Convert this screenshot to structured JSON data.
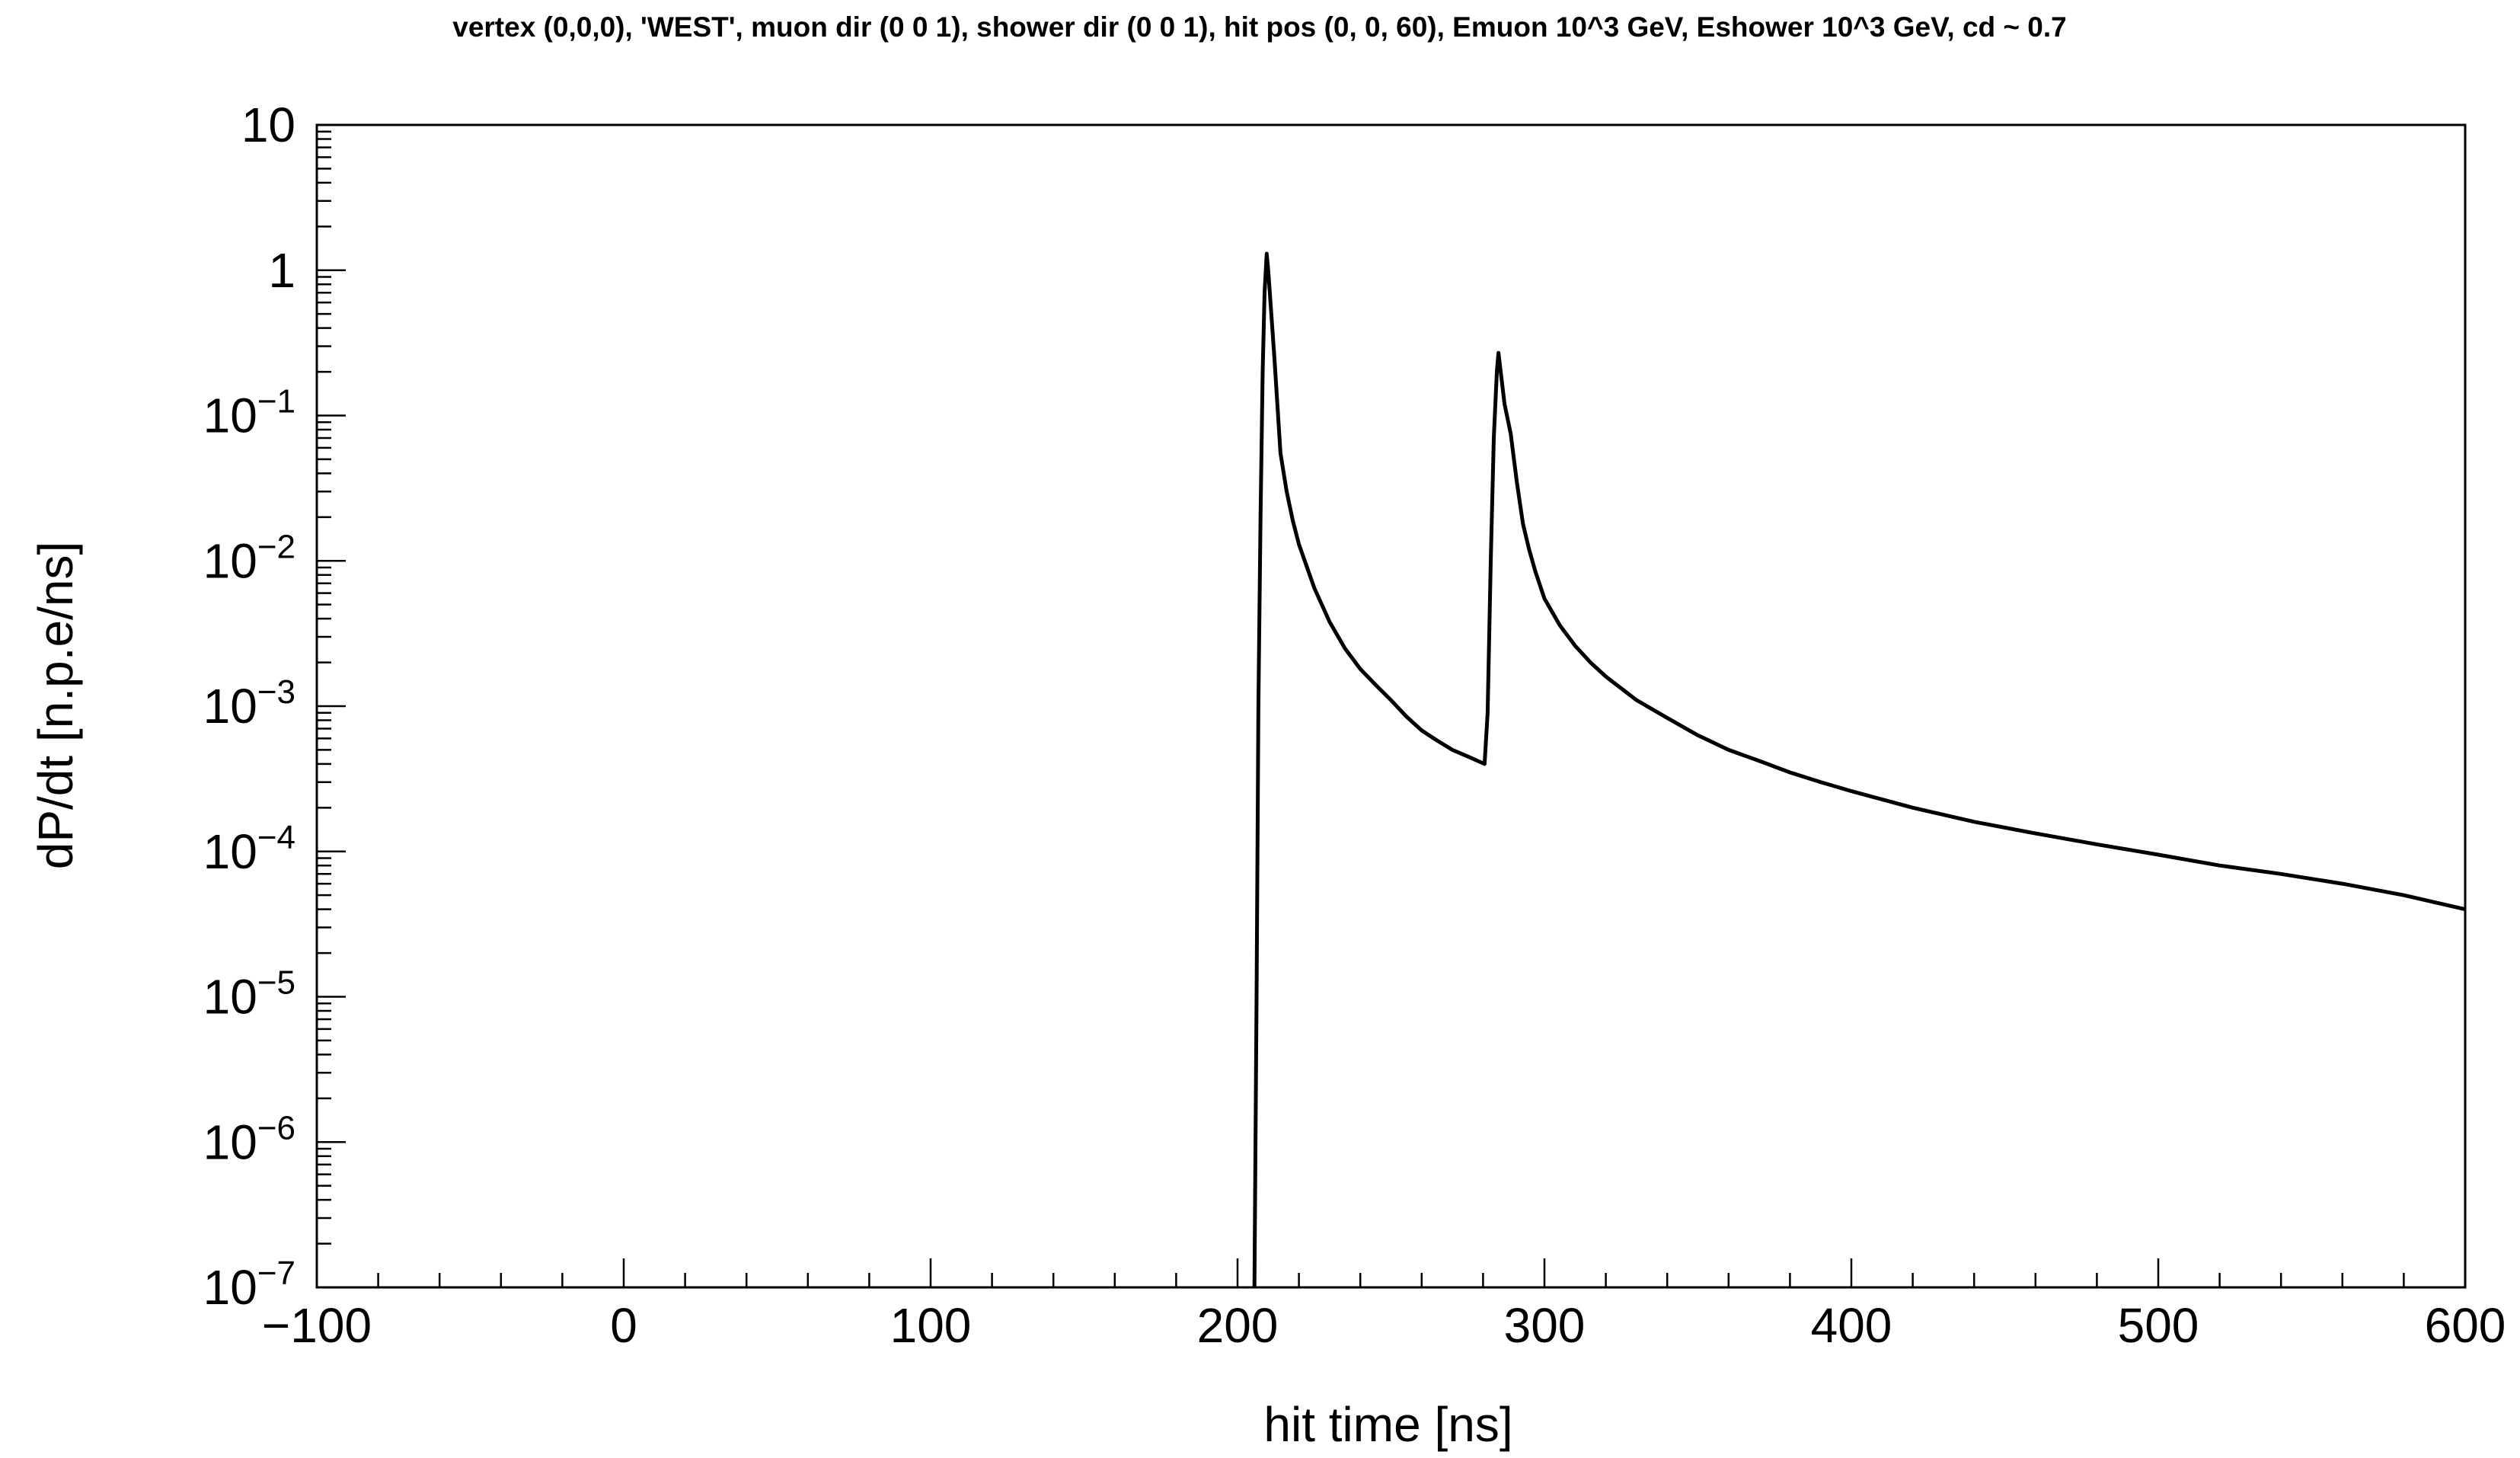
{
  "chart_data": {
    "type": "line",
    "title": "vertex (0,0,0), 'WEST', muon dir (0 0 1), shower dir (0 0 1), hit pos (0, 0, 60), Emuon 10^3 GeV, Eshower 10^3 GeV, cd ~ 0.7",
    "xlabel": "hit time [ns]",
    "ylabel": "dP/dt [n.p.e/ns]",
    "xlim": [
      -100,
      600
    ],
    "ylim": [
      1e-07,
      10
    ],
    "yscale": "log",
    "grid": false,
    "legend": "none",
    "line_color": "#000000",
    "x_ticks": [
      {
        "value": -100,
        "label": "−100"
      },
      {
        "value": 0,
        "label": "0"
      },
      {
        "value": 100,
        "label": "100"
      },
      {
        "value": 200,
        "label": "200"
      },
      {
        "value": 300,
        "label": "300"
      },
      {
        "value": 400,
        "label": "400"
      },
      {
        "value": 500,
        "label": "500"
      },
      {
        "value": 600,
        "label": "600"
      }
    ],
    "y_ticks": [
      {
        "value": 10,
        "base": "10",
        "exp": ""
      },
      {
        "value": 1,
        "base": "1",
        "exp": ""
      },
      {
        "value": 0.1,
        "base": "10",
        "exp": "−1"
      },
      {
        "value": 0.01,
        "base": "10",
        "exp": "−2"
      },
      {
        "value": 0.001,
        "base": "10",
        "exp": "−3"
      },
      {
        "value": 0.0001,
        "base": "10",
        "exp": "−4"
      },
      {
        "value": 1e-05,
        "base": "10",
        "exp": "−5"
      },
      {
        "value": 1e-06,
        "base": "10",
        "exp": "−6"
      },
      {
        "value": 1e-07,
        "base": "10",
        "exp": "−7"
      }
    ],
    "series": [
      {
        "x": [
          205.5,
          206.2,
          206.8,
          207.5,
          208.2,
          208.8,
          209.5,
          210,
          212,
          214,
          216,
          218,
          220,
          225,
          230,
          235,
          240,
          245,
          250,
          255,
          260,
          265,
          270,
          275,
          280.5,
          281.5,
          282.5,
          283.5,
          284.5,
          285,
          287,
          289,
          291,
          293,
          295,
          297,
          300,
          305,
          310,
          315,
          320,
          330,
          340,
          350,
          360,
          370,
          380,
          390,
          400,
          420,
          440,
          460,
          480,
          500,
          520,
          540,
          560,
          580,
          600
        ],
        "y": [
          1e-07,
          1e-05,
          0.001,
          0.02,
          0.2,
          0.7,
          1.3,
          1.0,
          0.25,
          0.055,
          0.03,
          0.019,
          0.013,
          0.0065,
          0.0038,
          0.0025,
          0.0018,
          0.0014,
          0.0011,
          0.00085,
          0.00068,
          0.00058,
          0.0005,
          0.00045,
          0.0004,
          0.0009,
          0.01,
          0.07,
          0.2,
          0.27,
          0.12,
          0.075,
          0.035,
          0.018,
          0.012,
          0.0085,
          0.0055,
          0.0036,
          0.0026,
          0.002,
          0.0016,
          0.0011,
          0.00083,
          0.00063,
          0.0005,
          0.00042,
          0.00035,
          0.0003,
          0.00026,
          0.0002,
          0.00016,
          0.000133,
          0.000112,
          9.5e-05,
          8e-05,
          7e-05,
          6e-05,
          5e-05,
          4e-05
        ]
      }
    ]
  }
}
